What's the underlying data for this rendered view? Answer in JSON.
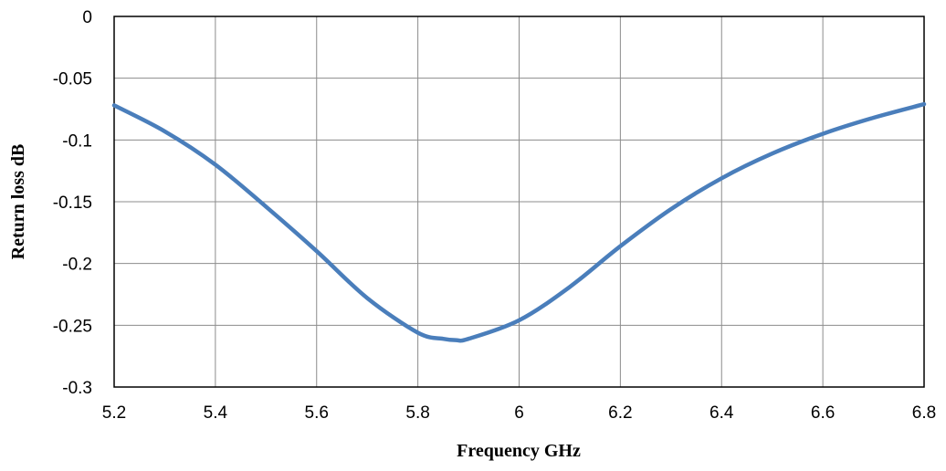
{
  "chart_data": {
    "type": "line",
    "title": "",
    "xlabel": "Frequency GHz",
    "ylabel": "Return loss dB",
    "xlim": [
      5.2,
      6.8
    ],
    "ylim": [
      -0.3,
      0
    ],
    "grid": true,
    "legend": "none",
    "x_ticks": [
      "5.2",
      "5.4",
      "5.6",
      "5.8",
      "6",
      "6.2",
      "6.4",
      "6.6",
      "6.8"
    ],
    "y_ticks": [
      "0",
      "-0.05",
      "-0.1",
      "-0.15",
      "-0.2",
      "-0.25",
      "-0.3"
    ],
    "series": [
      {
        "color": "#4a7ebb",
        "x": [
          5.2,
          5.3,
          5.4,
          5.5,
          5.6,
          5.7,
          5.8,
          5.85,
          5.875,
          5.9,
          6.0,
          6.1,
          6.2,
          6.3,
          6.4,
          6.5,
          6.6,
          6.7,
          6.8
        ],
        "y": [
          -0.072,
          -0.093,
          -0.12,
          -0.154,
          -0.19,
          -0.228,
          -0.256,
          -0.261,
          -0.262,
          -0.261,
          -0.246,
          -0.219,
          -0.186,
          -0.156,
          -0.131,
          -0.111,
          -0.095,
          -0.082,
          -0.071
        ]
      }
    ]
  }
}
